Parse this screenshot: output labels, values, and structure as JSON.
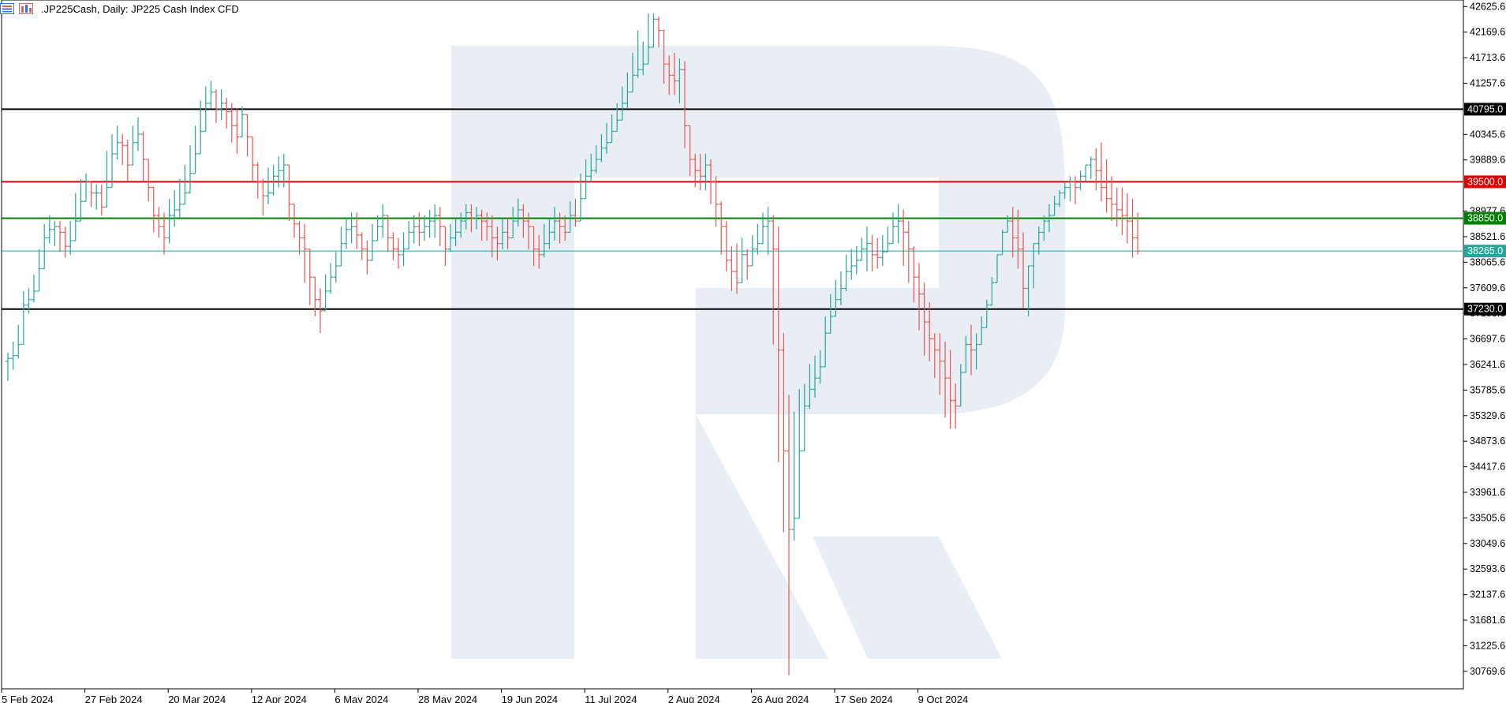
{
  "header": {
    "symbol": ".JP225Cash",
    "timeframe": "Daily:",
    "description": "JP225 Cash Index CFD"
  },
  "colors": {
    "bull": "#26a69a",
    "bear": "#ef5350",
    "level_black": "#000000",
    "level_red": "#e10000",
    "level_green": "#008000",
    "current": "#26a69a",
    "watermark": "#e9eef5"
  },
  "chart_data": {
    "type": "ohlc",
    "ylim": [
      30500,
      42700
    ],
    "y_ticks": [
      "42625.6",
      "42169.6",
      "41713.6",
      "41257.6",
      "40345.6",
      "39889.6",
      "38977.6",
      "38521.6",
      "38065.6",
      "37609.6",
      "37153.6",
      "36697.6",
      "36241.6",
      "35785.6",
      "35329.6",
      "34873.6",
      "34417.6",
      "33961.6",
      "33505.6",
      "33049.6",
      "32593.6",
      "32137.6",
      "31681.6",
      "31225.6",
      "30769.6"
    ],
    "x_ticks": [
      {
        "index": 0,
        "label": "5 Feb 2024"
      },
      {
        "index": 16,
        "label": "27 Feb 2024"
      },
      {
        "index": 32,
        "label": "20 Mar 2024"
      },
      {
        "index": 48,
        "label": "12 Apr 2024"
      },
      {
        "index": 64,
        "label": "6 May 2024"
      },
      {
        "index": 80,
        "label": "28 May 2024"
      },
      {
        "index": 96,
        "label": "19 Jun 2024"
      },
      {
        "index": 112,
        "label": "11 Jul 2024"
      },
      {
        "index": 128,
        "label": "2 Aug 2024"
      },
      {
        "index": 144,
        "label": "26 Aug 2024"
      },
      {
        "index": 160,
        "label": "17 Sep 2024"
      },
      {
        "index": 176,
        "label": "9 Oct 2024"
      }
    ],
    "levels": [
      {
        "value": 40795.0,
        "label": "40795.0",
        "color": "#000000"
      },
      {
        "value": 39500.0,
        "label": "39500.0",
        "color": "#e10000"
      },
      {
        "value": 38850.0,
        "label": "38850.0",
        "color": "#008000"
      },
      {
        "value": 37230.0,
        "label": "37230.0",
        "color": "#000000"
      }
    ],
    "current": {
      "value": 38265.0,
      "label": "38265.0"
    },
    "closes": [
      36350,
      36400,
      36600,
      37300,
      37400,
      37550,
      37950,
      38500,
      38650,
      38700,
      38600,
      38350,
      38450,
      38800,
      39150,
      39500,
      39300,
      39300,
      39050,
      39400,
      40000,
      40200,
      40150,
      39800,
      40200,
      40350,
      39900,
      39400,
      38900,
      38700,
      38500,
      38900,
      39000,
      39100,
      39300,
      39650,
      40000,
      40400,
      40900,
      41100,
      40800,
      40900,
      40750,
      40500,
      40300,
      40700,
      40300,
      39800,
      39500,
      39250,
      39300,
      39600,
      39700,
      39800,
      39100,
      38750,
      38500,
      38300,
      37800,
      37400,
      37200,
      37550,
      37800,
      38000,
      38400,
      38650,
      38700,
      38550,
      38300,
      38100,
      38450,
      38700,
      38900,
      38500,
      38300,
      38200,
      38300,
      38600,
      38700,
      38600,
      38700,
      38800,
      38900,
      38700,
      38300,
      38500,
      38600,
      38800,
      38950,
      38850,
      38900,
      38800,
      38700,
      38500,
      38400,
      38600,
      38500,
      38800,
      39000,
      38800,
      38700,
      38300,
      38200,
      38400,
      38600,
      38800,
      38700,
      38600,
      38900,
      38800,
      39200,
      39600,
      39700,
      39900,
      40100,
      40200,
      40400,
      40600,
      40900,
      41100,
      41400,
      41500,
      41600,
      41900,
      42400,
      42200,
      41600,
      41400,
      41300,
      41500,
      40500,
      39900,
      39700,
      39600,
      39800,
      39500,
      39100,
      38700,
      38100,
      37900,
      37700,
      38200,
      38000,
      38300,
      38400,
      38700,
      38800,
      38300,
      36500,
      34700,
      33300,
      33500,
      34700,
      35500,
      35800,
      36000,
      36200,
      36800,
      37100,
      37400,
      37600,
      37900,
      38000,
      38100,
      38300,
      38400,
      38200,
      38150,
      38250,
      38400,
      38700,
      38800,
      38600,
      38300,
      37800,
      37500,
      37000,
      36700,
      36500,
      36300,
      36000,
      35600,
      35500,
      36100,
      36600,
      36500,
      36600,
      36900,
      37300,
      37700,
      38200,
      38600,
      38800,
      38500,
      38300,
      37600,
      38000,
      38400,
      38600,
      38800,
      38900,
      39100,
      39300,
      39400,
      39500,
      39400,
      39600,
      39800,
      39900,
      39700,
      39400,
      39200,
      39100,
      39000,
      38900,
      38800,
      38500,
      38265
    ],
    "highs": [
      36450,
      36650,
      36950,
      37550,
      37600,
      37850,
      38300,
      38750,
      38900,
      38800,
      38800,
      38700,
      38800,
      39300,
      39550,
      39650,
      39500,
      39450,
      39450,
      40050,
      40350,
      40500,
      40350,
      40250,
      40500,
      40650,
      40400,
      39900,
      39300,
      39050,
      38950,
      39200,
      39350,
      39550,
      39800,
      40150,
      40500,
      40950,
      41200,
      41300,
      41150,
      41150,
      41000,
      40900,
      40800,
      40850,
      40550,
      40150,
      39850,
      39550,
      39750,
      39800,
      39950,
      40000,
      39400,
      39100,
      38800,
      38750,
      38300,
      37800,
      37600,
      37850,
      38050,
      38250,
      38700,
      38850,
      38950,
      38950,
      38600,
      38450,
      38750,
      38900,
      39100,
      38850,
      38600,
      38500,
      38600,
      38800,
      38900,
      38950,
      38900,
      39000,
      39100,
      39050,
      38700,
      38750,
      38850,
      38950,
      39100,
      39100,
      39050,
      39000,
      38950,
      38900,
      38700,
      38850,
      38850,
      39050,
      39200,
      39100,
      38950,
      38700,
      38550,
      38750,
      38850,
      39050,
      38950,
      38900,
      39150,
      39200,
      39650,
      39900,
      40000,
      40150,
      40350,
      40550,
      40700,
      40900,
      41200,
      41450,
      41800,
      42200,
      42000,
      42500,
      42500,
      42450,
      42100,
      41750,
      41800,
      41700,
      41650,
      40300,
      40000,
      40000,
      40000,
      39900,
      39600,
      39150,
      38800,
      38350,
      38400,
      38500,
      38300,
      38550,
      38750,
      38950,
      39050,
      38900,
      38700,
      36800,
      35700,
      35400,
      35800,
      35900,
      36250,
      36400,
      36500,
      37100,
      37500,
      37750,
      37900,
      38200,
      38300,
      38350,
      38500,
      38700,
      38550,
      38500,
      38550,
      38700,
      38950,
      39100,
      39000,
      38800,
      38350,
      38050,
      37700,
      37350,
      36800,
      36800,
      36650,
      36500,
      35900,
      36250,
      36750,
      36950,
      36800,
      37100,
      37400,
      37800,
      38200,
      38650,
      38900,
      39050,
      39000,
      38600,
      37950,
      38250,
      38700,
      38900,
      39100,
      39250,
      39350,
      39500,
      39600,
      39600,
      39700,
      39800,
      39950,
      40100,
      40200,
      39900,
      39600,
      39400,
      39400,
      39300,
      39200,
      38950,
      38900,
      38650
    ],
    "lows": [
      35950,
      36150,
      36350,
      36950,
      37150,
      37350,
      37750,
      38250,
      38400,
      38350,
      38250,
      38150,
      38200,
      38650,
      38900,
      39200,
      39050,
      39000,
      38900,
      39200,
      39700,
      39900,
      39800,
      39500,
      39900,
      40050,
      39500,
      39150,
      38600,
      38500,
      38200,
      38400,
      38700,
      38850,
      39100,
      39400,
      39800,
      40150,
      40550,
      40800,
      40550,
      40600,
      40450,
      40200,
      40000,
      40300,
      39950,
      39500,
      39200,
      38900,
      39100,
      39250,
      39400,
      39400,
      38800,
      38500,
      38200,
      37700,
      37300,
      37100,
      36800,
      37300,
      37500,
      37700,
      38150,
      38300,
      38400,
      38300,
      38100,
      37850,
      38200,
      38450,
      38500,
      38250,
      38100,
      37950,
      38000,
      38300,
      38400,
      38350,
      38450,
      38500,
      38500,
      38350,
      38000,
      38250,
      38350,
      38500,
      38650,
      38600,
      38650,
      38450,
      38450,
      38150,
      38100,
      38300,
      38300,
      38500,
      38700,
      38500,
      38300,
      38000,
      37950,
      38150,
      38300,
      38450,
      38400,
      38450,
      38600,
      38700,
      38900,
      39350,
      39500,
      39650,
      39850,
      40000,
      40200,
      40400,
      40700,
      40800,
      41200,
      41350,
      41400,
      41600,
      42100,
      41900,
      41250,
      41050,
      41050,
      40900,
      40100,
      39600,
      39400,
      39350,
      39350,
      39100,
      38700,
      38200,
      37900,
      37550,
      37500,
      37950,
      37750,
      38000,
      38200,
      38450,
      38200,
      36600,
      34500,
      33250,
      30700,
      33100,
      34400,
      35100,
      35450,
      35650,
      35900,
      36400,
      36850,
      37100,
      37300,
      37550,
      37750,
      37850,
      38100,
      37900,
      37900,
      37950,
      38000,
      38250,
      38450,
      38400,
      38000,
      37700,
      37350,
      36850,
      36400,
      36300,
      36000,
      35700,
      35300,
      35100,
      35100,
      35600,
      36200,
      36050,
      36150,
      36700,
      37050,
      37400,
      37950,
      38350,
      38600,
      38150,
      37950,
      37250,
      37100,
      37600,
      38200,
      38450,
      38600,
      38900,
      39050,
      39200,
      39150,
      39100,
      39350,
      39500,
      39550,
      39350,
      39150,
      38950,
      38800,
      38700,
      38550,
      38400,
      38150,
      38200
    ]
  }
}
